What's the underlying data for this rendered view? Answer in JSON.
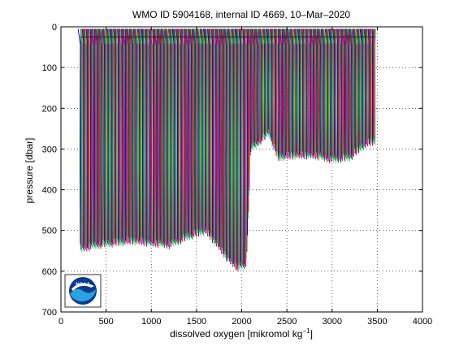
{
  "chart_data": {
    "type": "line",
    "title": "WMO ID 5904168, internal ID 4669, 10–Mar–2020",
    "xlabel": "dissolved oxygen [mikromol kg",
    "xlabel_sup": "−1",
    "xlabel_close": "]",
    "ylabel": "pressure [dbar]",
    "xlim": [
      0,
      4000
    ],
    "ylim": [
      700,
      0
    ],
    "y_reversed": true,
    "grid": true,
    "grid_style": "dotted",
    "x_ticks": [
      0,
      500,
      1000,
      1500,
      2000,
      2500,
      3000,
      3500,
      4000
    ],
    "x_tick_labels": [
      "0",
      "500",
      "1000",
      "1500",
      "2000",
      "2500",
      "3000",
      "3500",
      "4000"
    ],
    "y_ticks": [
      0,
      100,
      200,
      300,
      400,
      500,
      600,
      700
    ],
    "y_tick_labels": [
      "0",
      "100",
      "200",
      "300",
      "400",
      "500",
      "600",
      "700"
    ],
    "series_colors": [
      "#0000ff",
      "#008000",
      "#ff0000",
      "#00bfbf",
      "#bf00bf",
      "#bfbf00",
      "#404040"
    ],
    "profiles": {
      "description": "one vertical oxygen profile per cycle, stacked side by side",
      "x_start": 215,
      "x_end": 3480,
      "x_step": 22,
      "top_pressure": 25,
      "bottom_pressure_envelope": [
        [
          215,
          545
        ],
        [
          400,
          535
        ],
        [
          600,
          530
        ],
        [
          800,
          525
        ],
        [
          1000,
          530
        ],
        [
          1200,
          535
        ],
        [
          1400,
          515
        ],
        [
          1600,
          500
        ],
        [
          1750,
          540
        ],
        [
          1850,
          570
        ],
        [
          1950,
          590
        ],
        [
          2050,
          585
        ],
        [
          2100,
          300
        ],
        [
          2200,
          280
        ],
        [
          2300,
          260
        ],
        [
          2400,
          320
        ],
        [
          2600,
          315
        ],
        [
          2800,
          315
        ],
        [
          3000,
          325
        ],
        [
          3200,
          320
        ],
        [
          3300,
          300
        ],
        [
          3400,
          285
        ],
        [
          3480,
          280
        ]
      ],
      "top_tail_pressure": 5
    }
  },
  "logo": {
    "label": "NOAA"
  }
}
